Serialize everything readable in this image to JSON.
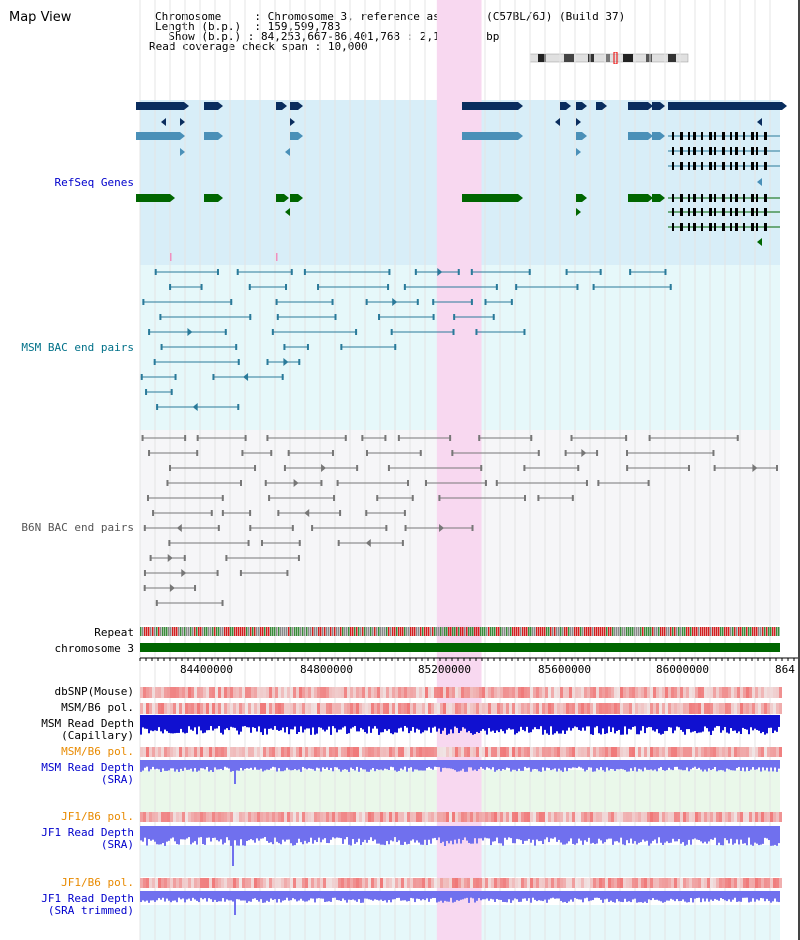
{
  "title": "Map View",
  "info": {
    "chromosome": {
      "label": "Chromosome",
      "value": "Chromosome 3, reference assembly (C57BL/6J) (Build 37)"
    },
    "length": {
      "label": "Length (b.p.)",
      "value": "159,599,783"
    },
    "show": {
      "label": "Show (b.p.)",
      "value": "84,253,667-86,401,768 : 2,148,102 bp"
    },
    "span": {
      "label": "Read coverage check span",
      "value": "10,000"
    }
  },
  "tracks": {
    "refseq": "RefSeq Genes",
    "msm_bac": "MSM BAC end pairs",
    "b6n_bac": "B6N BAC end pairs",
    "repeat": "Repeat",
    "chromosome": "chromosome 3",
    "dbsnp": "dbSNP(Mouse)",
    "msm_b6_pol_1": "MSM/B6 pol.",
    "msm_read_cap": "MSM Read Depth",
    "msm_read_cap_sub": "(Capillary)",
    "msm_b6_pol_2": "MSM/B6 pol.",
    "msm_read_sra": "MSM Read Depth",
    "msm_read_sra_sub": "(SRA)",
    "jf1_b6_pol_1": "JF1/B6 pol.",
    "jf1_read_sra": "JF1 Read Depth",
    "jf1_read_sra_sub": "(SRA)",
    "jf1_b6_pol_2": "JF1/B6 pol.",
    "jf1_read_trim": "JF1 Read Depth",
    "jf1_read_trim_sub": "(SRA trimmed)"
  },
  "axis": {
    "start_bp": 84253667,
    "end_bp": 86401768,
    "ticks": [
      "84400000",
      "84800000",
      "85200000",
      "85600000",
      "86000000",
      "864"
    ]
  },
  "highlight": {
    "start_bp": 85250000,
    "end_bp": 85400000
  },
  "colors": {
    "refseq_bg": "#d8eef8",
    "bac_bg": "#e6f8fa",
    "b6n_bg": "#f6f6f8",
    "highlight": "#f8d8f0",
    "dark_navy": "#0a2d5e",
    "steel": "#4a90b8",
    "green": "#006600",
    "teal_line": "#2a7a9a",
    "gray_line": "#777777",
    "chrom_bar": "#006600",
    "dbsnp": "#f4a0a0",
    "pol": "#ee5050",
    "read_cap": "#1010d0",
    "read_sra": "#7070ee",
    "sra_bg": "#eaf8ea"
  }
}
